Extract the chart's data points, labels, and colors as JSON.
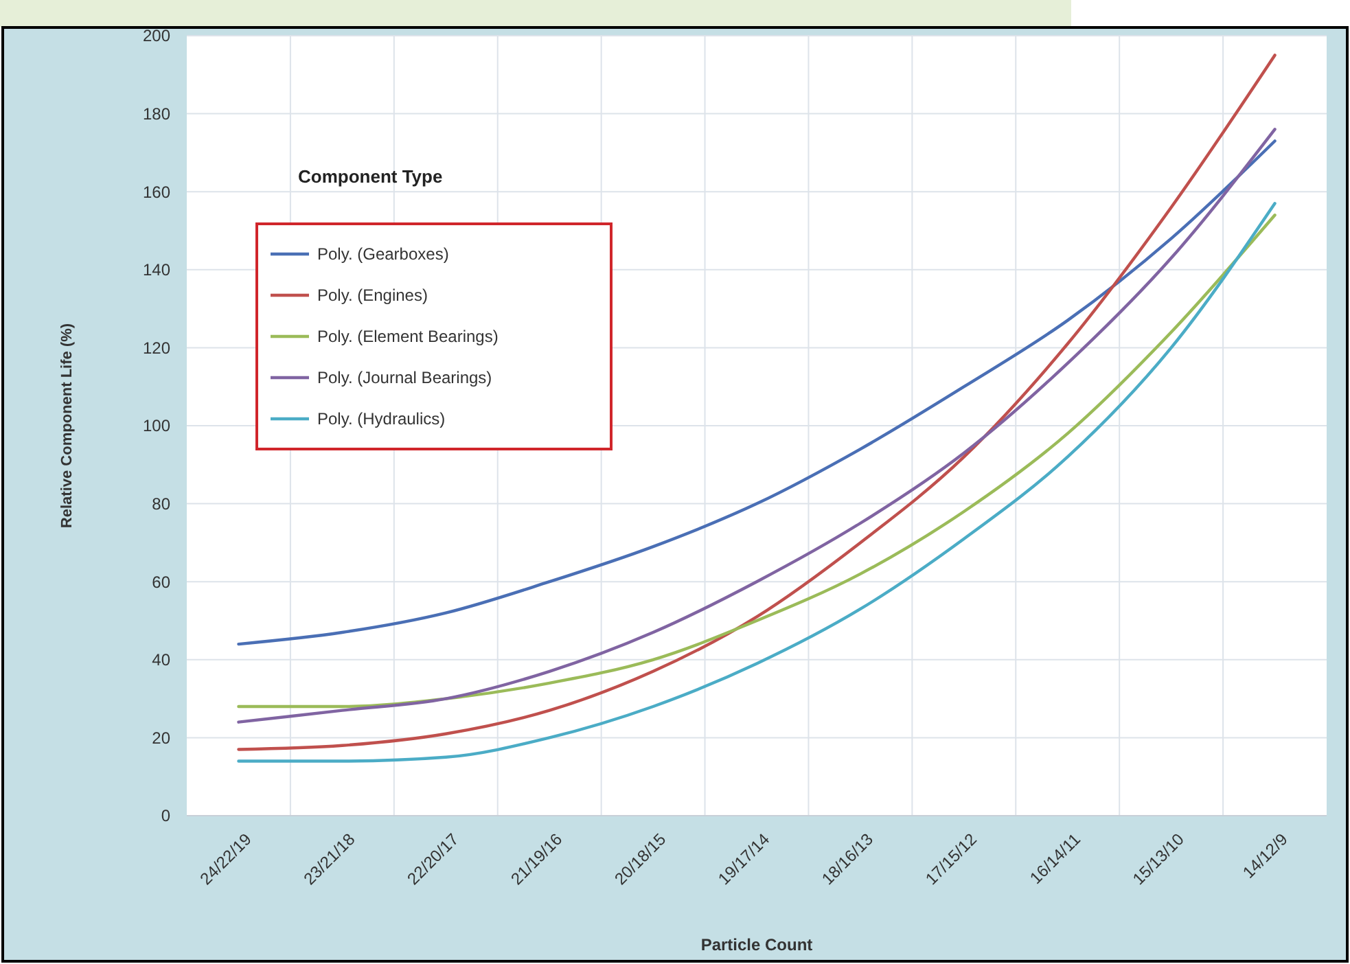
{
  "chart_data": {
    "type": "line",
    "xlabel": "Particle Count",
    "ylabel": "Relative Component Life (%)",
    "legend_title": "Component Type",
    "categories": [
      "24/22/19",
      "23/21/18",
      "22/20/17",
      "21/19/16",
      "20/18/15",
      "19/17/14",
      "18/16/13",
      "17/15/12",
      "16/14/11",
      "15/13/10",
      "14/12/9"
    ],
    "series": [
      {
        "name": "Poly. (Gearboxes)",
        "color": "#4a6fb5",
        "values": [
          44,
          47,
          52,
          60,
          69,
          80,
          94,
          110,
          127,
          148,
          173
        ]
      },
      {
        "name": "Poly. (Engines)",
        "color": "#c0504d",
        "values": [
          17,
          18,
          21,
          27,
          37,
          51,
          70,
          92,
          121,
          156,
          195
        ]
      },
      {
        "name": "Poly. (Element Bearings)",
        "color": "#9bbb59",
        "values": [
          28,
          28,
          30,
          34,
          40,
          50,
          62,
          78,
          98,
          124,
          154
        ]
      },
      {
        "name": "Poly. (Journal Bearings)",
        "color": "#8064a2",
        "values": [
          24,
          27,
          30,
          37,
          47,
          60,
          75,
          93,
          116,
          143,
          176
        ]
      },
      {
        "name": "Poly. (Hydraulics)",
        "color": "#4bacc6",
        "values": [
          14,
          14,
          15,
          20,
          28,
          39,
          53,
          71,
          92,
          120,
          157
        ]
      }
    ],
    "ylim": [
      0,
      200
    ],
    "yticks": [
      0,
      20,
      40,
      60,
      80,
      100,
      120,
      140,
      160,
      180,
      200
    ],
    "grid": true,
    "legend": "top left",
    "marker": "none",
    "line_style": "solid"
  }
}
